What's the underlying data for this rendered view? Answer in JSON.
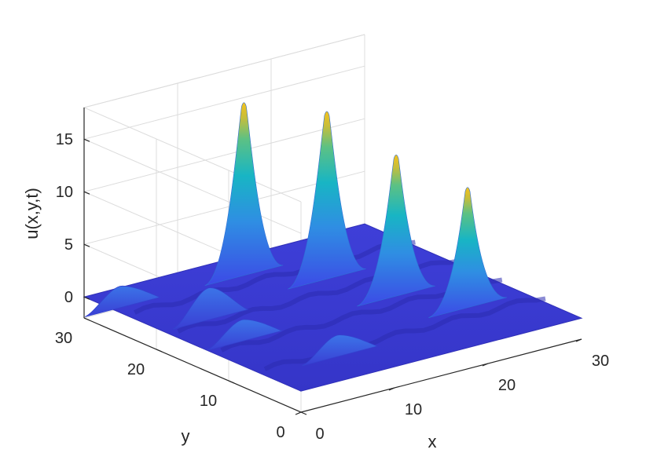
{
  "chart_data": {
    "type": "surface",
    "title": "",
    "xlabel": "x",
    "ylabel": "y",
    "zlabel": "u(x,y,t)",
    "xlim": [
      0,
      30
    ],
    "ylim": [
      0,
      30
    ],
    "zlim": [
      -2,
      18
    ],
    "xticks": [
      0,
      10,
      20,
      30
    ],
    "yticks": [
      0,
      10,
      20,
      30
    ],
    "zticks": [
      0,
      5,
      10,
      15
    ],
    "xtick_labels": [
      "0",
      "10",
      "20",
      "30"
    ],
    "ytick_labels": [
      "0",
      "10",
      "20",
      "30"
    ],
    "ztick_labels": [
      "0",
      "5",
      "10",
      "15"
    ],
    "grid": true,
    "colormap": "parula",
    "peaks": [
      {
        "x": 14,
        "y": 26,
        "z": 16.5
      },
      {
        "x": 19,
        "y": 21,
        "z": 16.0
      },
      {
        "x": 21,
        "y": 14,
        "z": 13.5
      },
      {
        "x": 24,
        "y": 8,
        "z": 11.5
      }
    ],
    "ridges": [
      {
        "x": 1,
        "y": 26,
        "z": 2.0
      },
      {
        "x": 5,
        "y": 19,
        "z": 3.0
      },
      {
        "x": 4,
        "y": 13,
        "z": 2.0
      },
      {
        "x": 8,
        "y": 5,
        "z": 2.0
      }
    ]
  }
}
